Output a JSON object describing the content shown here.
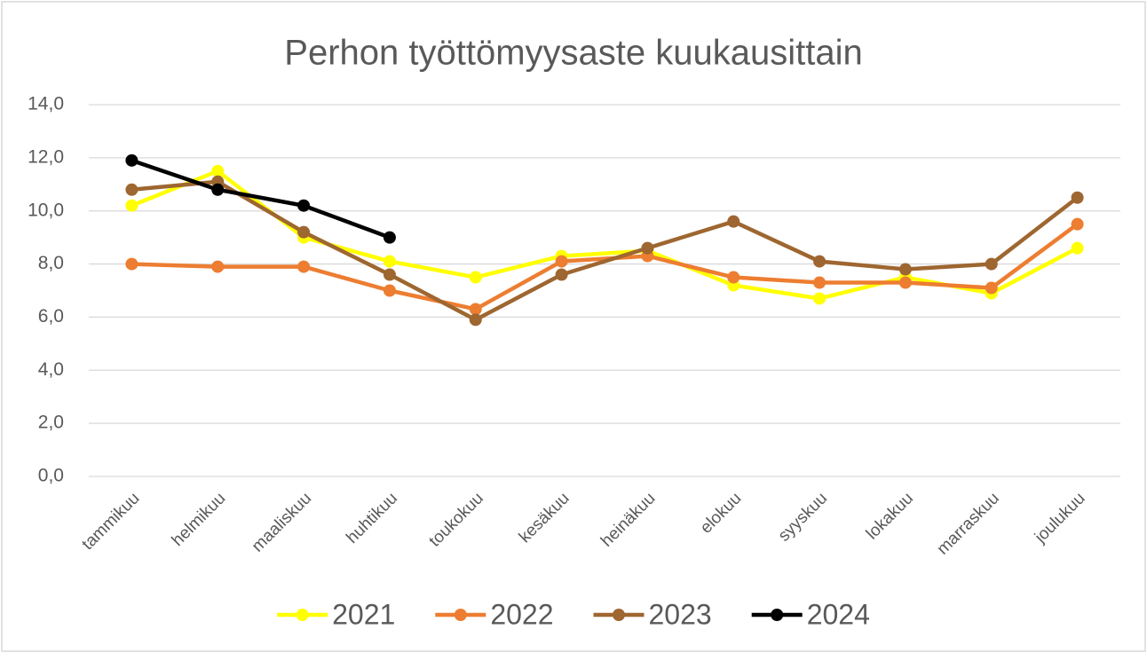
{
  "chart_data": {
    "type": "line",
    "title": "Perhon työttömyysaste kuukausittain",
    "categories": [
      "tammikuu",
      "helmikuu",
      "maaliskuu",
      "huhtikuu",
      "toukokuu",
      "kesäkuu",
      "heinäkuu",
      "elokuu",
      "syyskuu",
      "lokakuu",
      "marraskuu",
      "joulukuu"
    ],
    "series": [
      {
        "name": "2021",
        "color": "#ffff00",
        "values": [
          10.2,
          11.5,
          9.0,
          8.1,
          7.5,
          8.3,
          8.5,
          7.2,
          6.7,
          7.5,
          6.9,
          8.6
        ]
      },
      {
        "name": "2022",
        "color": "#ed7d31",
        "values": [
          8.0,
          7.9,
          7.9,
          7.0,
          6.3,
          8.1,
          8.3,
          7.5,
          7.3,
          7.3,
          7.1,
          9.5
        ]
      },
      {
        "name": "2023",
        "color": "#9e6630",
        "values": [
          10.8,
          11.1,
          9.2,
          7.6,
          5.9,
          7.6,
          8.6,
          9.6,
          8.1,
          7.8,
          8.0,
          10.5
        ]
      },
      {
        "name": "2024",
        "color": "#000000",
        "values": [
          11.9,
          10.8,
          10.2,
          9.0,
          null,
          null,
          null,
          null,
          null,
          null,
          null,
          null
        ]
      }
    ],
    "ylim": [
      0,
      14
    ],
    "yticks": [
      {
        "value": 0,
        "label": "0,0"
      },
      {
        "value": 2,
        "label": "2,0"
      },
      {
        "value": 4,
        "label": "4,0"
      },
      {
        "value": 6,
        "label": "6,0"
      },
      {
        "value": 8,
        "label": "8,0"
      },
      {
        "value": 10,
        "label": "10,0"
      },
      {
        "value": 12,
        "label": "12,0"
      },
      {
        "value": 14,
        "label": "14,0"
      }
    ],
    "grid": true,
    "legend": "bottom"
  }
}
